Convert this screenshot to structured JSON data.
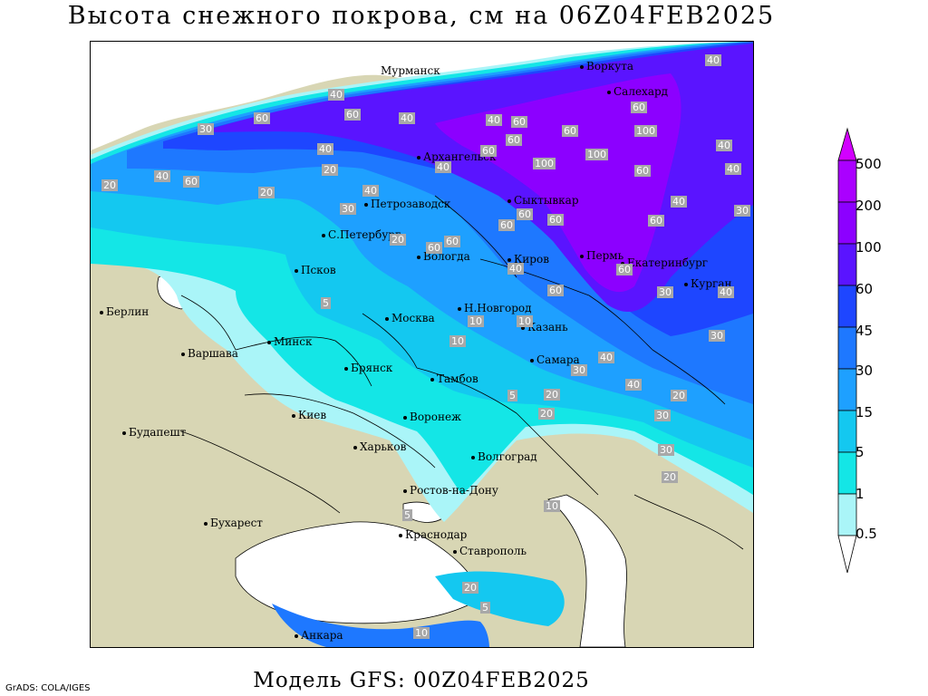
{
  "title": "Высота снежного покрова, см на 06Z04FEB2025",
  "footer": "Модель GFS: 00Z04FEB2025",
  "credit": "GrADS: COLA/IGES",
  "colors": {
    "land": "#d8d6b4",
    "water": "#ffffff",
    "c05": "#aaf5f8",
    "c1": "#14e6e6",
    "c5": "#14c8f0",
    "c15": "#1ea0ff",
    "c30": "#1e78ff",
    "c45": "#1e46ff",
    "c60": "#5a14ff",
    "c100": "#8c00ff",
    "c200": "#aa00ff",
    "c500": "#d200ff"
  },
  "legend": {
    "labels": [
      "500",
      "200",
      "100",
      "60",
      "45",
      "30",
      "15",
      "5",
      "1",
      "0.5"
    ]
  },
  "cities": [
    {
      "name": "Мурманск"
    },
    {
      "name": "Воркута"
    },
    {
      "name": "Салехард"
    },
    {
      "name": "Архангельск"
    },
    {
      "name": "Сыктывкар"
    },
    {
      "name": "Петрозаводск"
    },
    {
      "name": "С.Петербург"
    },
    {
      "name": "Вологда"
    },
    {
      "name": "Псков"
    },
    {
      "name": "Киров"
    },
    {
      "name": "Пермь"
    },
    {
      "name": "Екатеринбург"
    },
    {
      "name": "Курган"
    },
    {
      "name": "Берлин"
    },
    {
      "name": "Н.Новгород"
    },
    {
      "name": "Москва"
    },
    {
      "name": "Казань"
    },
    {
      "name": "Минск"
    },
    {
      "name": "Варшава"
    },
    {
      "name": "Брянск"
    },
    {
      "name": "Тамбов"
    },
    {
      "name": "Самара"
    },
    {
      "name": "Киев"
    },
    {
      "name": "Воронеж"
    },
    {
      "name": "Харьков"
    },
    {
      "name": "Будапешт"
    },
    {
      "name": "Волгоград"
    },
    {
      "name": "Ростов-на-Дону"
    },
    {
      "name": "Бухарест"
    },
    {
      "name": "Краснодар"
    },
    {
      "name": "Ставрополь"
    },
    {
      "name": "Анкара"
    }
  ],
  "contour_labels": [
    "40",
    "60",
    "60",
    "40",
    "60",
    "40",
    "30",
    "40",
    "100",
    "60",
    "60",
    "40",
    "40",
    "60",
    "100",
    "60",
    "100",
    "60",
    "40",
    "40",
    "40",
    "20",
    "20",
    "40",
    "60",
    "20",
    "30",
    "20",
    "40",
    "60",
    "30",
    "60",
    "60",
    "60",
    "60",
    "40",
    "40",
    "60",
    "60",
    "60",
    "30",
    "40",
    "40",
    "30",
    "10",
    "10",
    "10",
    "30",
    "5",
    "20",
    "20",
    "30",
    "20",
    "30",
    "20",
    "5",
    "10",
    "5",
    "20",
    "5",
    "10"
  ]
}
